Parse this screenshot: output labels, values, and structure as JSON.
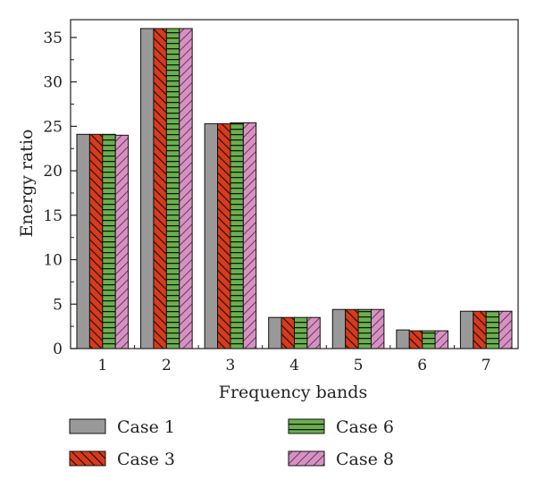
{
  "chart_data": {
    "type": "bar",
    "xlabel": "Frequency bands",
    "ylabel": "Energy ratio",
    "categories": [
      "1",
      "2",
      "3",
      "4",
      "5",
      "6",
      "7"
    ],
    "ylim": [
      0,
      37
    ],
    "yticks": [
      0,
      5,
      10,
      15,
      20,
      25,
      30,
      35
    ],
    "grid": false,
    "legend_position": "bottom",
    "series": [
      {
        "name": "Case 1",
        "values": [
          24.1,
          36.0,
          25.3,
          3.5,
          4.4,
          2.1,
          4.2
        ],
        "color": "#999999",
        "pattern": "solid"
      },
      {
        "name": "Case 3",
        "values": [
          24.1,
          36.0,
          25.3,
          3.5,
          4.4,
          2.0,
          4.2
        ],
        "color": "#d93a1a",
        "pattern": "diagonal-hatch"
      },
      {
        "name": "Case 6",
        "values": [
          24.1,
          36.0,
          25.4,
          3.5,
          4.4,
          2.0,
          4.2
        ],
        "color": "#6ab04c",
        "pattern": "horizontal-hatch"
      },
      {
        "name": "Case 8",
        "values": [
          24.0,
          36.0,
          25.4,
          3.5,
          4.4,
          2.0,
          4.2
        ],
        "color": "#d98fc4",
        "pattern": "diagonal-hatch"
      }
    ]
  }
}
